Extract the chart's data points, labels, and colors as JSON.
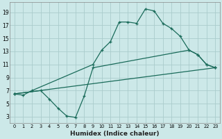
{
  "xlabel": "Humidex (Indice chaleur)",
  "bg_color": "#cce8e8",
  "grid_color": "#aacccc",
  "line_color": "#1a6b5a",
  "line1_x": [
    0,
    1,
    2,
    9,
    10,
    11,
    12,
    13,
    14,
    15,
    16,
    17,
    18,
    19,
    20,
    21,
    22,
    23
  ],
  "line1_y": [
    6.5,
    6.3,
    7.0,
    11.0,
    13.2,
    14.5,
    17.5,
    17.5,
    17.3,
    19.5,
    19.2,
    17.3,
    16.5,
    15.3,
    13.2,
    12.5,
    11.0,
    10.5
  ],
  "line2_x": [
    0,
    3,
    4,
    5,
    6,
    7,
    8,
    9,
    20,
    21,
    22,
    23
  ],
  "line2_y": [
    6.5,
    7.0,
    5.7,
    4.3,
    3.1,
    2.9,
    6.2,
    10.5,
    13.2,
    12.5,
    11.0,
    10.5
  ],
  "line3_x": [
    0,
    23
  ],
  "line3_y": [
    6.5,
    10.5
  ],
  "xticks": [
    0,
    1,
    2,
    3,
    4,
    5,
    6,
    7,
    8,
    9,
    10,
    11,
    12,
    13,
    14,
    15,
    16,
    17,
    18,
    19,
    20,
    21,
    22,
    23
  ],
  "yticks": [
    3,
    5,
    7,
    9,
    11,
    13,
    15,
    17,
    19
  ],
  "xlim": [
    -0.5,
    23.5
  ],
  "ylim": [
    2.0,
    20.5
  ]
}
